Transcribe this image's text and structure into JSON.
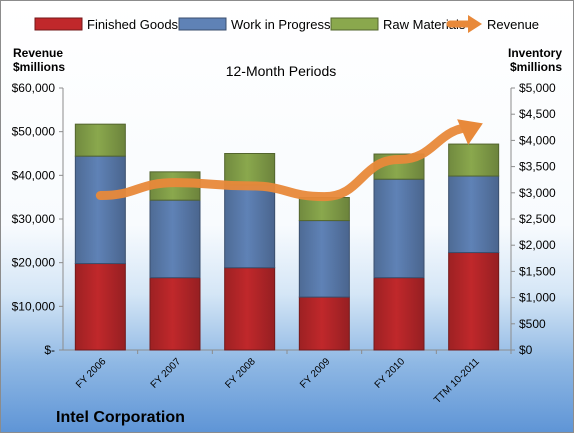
{
  "chart_data": {
    "type": "bar",
    "stacked": true,
    "subtitle": "12-Month Periods",
    "company": "Intel Corporation",
    "left_axis_title": [
      "Revenue",
      "$millions"
    ],
    "right_axis_title": [
      "Inventory",
      "$millions"
    ],
    "categories": [
      "FY 2006",
      "FY 2007",
      "FY 2008",
      "FY 2009",
      "FY 2010",
      "TTM 10-2011"
    ],
    "series": [
      {
        "name": "Finished Goods",
        "color": "#c0282b",
        "values": [
          1650,
          1380,
          1570,
          1010,
          1380,
          1860
        ]
      },
      {
        "name": "Work in Progress",
        "color": "#5f82b6",
        "values": [
          2050,
          1480,
          1580,
          1460,
          1880,
          1460
        ]
      },
      {
        "name": "Raw Materials",
        "color": "#8aa84d",
        "values": [
          610,
          540,
          600,
          440,
          480,
          610
        ]
      }
    ],
    "line": {
      "name": "Revenue",
      "color": "#e8893a",
      "values": [
        35382,
        38334,
        37586,
        35127,
        43623,
        51000
      ],
      "unit": "$millions"
    },
    "left_axis": {
      "min": 0,
      "max": 60000,
      "step": 10000,
      "ticks": [
        "$-",
        "$10,000",
        "$20,000",
        "$30,000",
        "$40,000",
        "$50,000",
        "$60,000"
      ]
    },
    "right_axis": {
      "min": 0,
      "max": 5000,
      "step": 500,
      "ticks": [
        "$0",
        "$500",
        "$1,000",
        "$1,500",
        "$2,000",
        "$2,500",
        "$3,000",
        "$3,500",
        "$4,000",
        "$4,500",
        "$5,000"
      ]
    },
    "grid": false,
    "legend_position": "top"
  }
}
